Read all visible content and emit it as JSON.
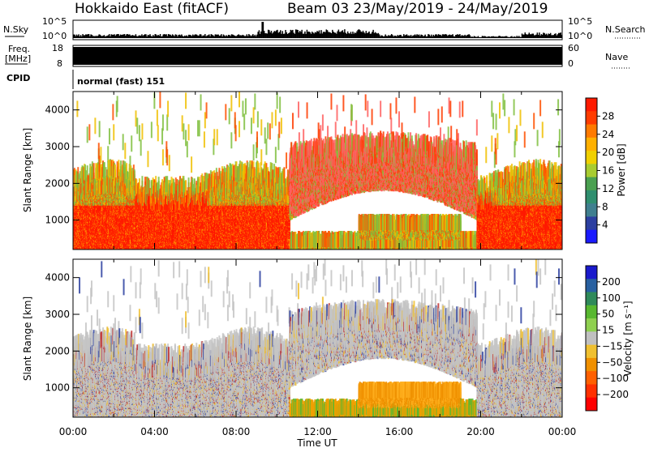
{
  "header": {
    "title": "Hokkaido East (fitACF)",
    "beam_info": "Beam 03 23/May/2019 - 24/May/2019"
  },
  "top_panels": {
    "nsky_label": "N.Sky",
    "nsky_ticks": [
      "10^5",
      "10^0"
    ],
    "nsearch_label": "N.Search",
    "nsearch_ticks": [
      "10^5",
      "10^0"
    ],
    "freq_label": "Freq.",
    "freq_unit": "[MHz]",
    "freq_ticks": [
      "18",
      "8"
    ],
    "nave_label": "Nave",
    "nave_ticks": [
      "60",
      "0"
    ],
    "cpid_label": "CPID",
    "cpid_value": "normal (fast) 151"
  },
  "chart_data": [
    {
      "type": "heatmap",
      "name": "power",
      "ylabel": "Slant Range [km]",
      "xlabel": "Time UT",
      "xlim_hours": [
        0,
        24
      ],
      "ylim": [
        200,
        4500
      ],
      "yticks": [
        "4000",
        "3000",
        "2000",
        "1000"
      ],
      "colorbar": {
        "label": "Power [dB]",
        "levels": [
          "28",
          "24",
          "20",
          "16",
          "12",
          "8",
          "4"
        ],
        "colors": [
          "#ff1a00",
          "#ff3c00",
          "#ff7a00",
          "#ffb000",
          "#f0d000",
          "#a8cc30",
          "#4aa050",
          "#2f8f6f",
          "#3f7f8f",
          "#2c3fa0",
          "#1a1aff"
        ]
      }
    },
    {
      "type": "heatmap",
      "name": "velocity",
      "ylabel": "Slant Range [km]",
      "xlabel": "Time UT",
      "xlim_hours": [
        0,
        24
      ],
      "ylim": [
        200,
        4500
      ],
      "yticks": [
        "4000",
        "3000",
        "2000",
        "1000"
      ],
      "colorbar": {
        "label": "Velocity [m s⁻¹]",
        "levels": [
          "200",
          "100",
          "50",
          "15",
          "−15",
          "−50",
          "−100",
          "−200"
        ],
        "colors": [
          "#1a1acc",
          "#2860a0",
          "#2f8a5a",
          "#58b830",
          "#8fd050",
          "#c0c0c0",
          "#f0c030",
          "#f09000",
          "#ff6000",
          "#ff3000",
          "#ff0000"
        ]
      }
    }
  ],
  "xaxis": {
    "ticks": [
      "00:00",
      "04:00",
      "08:00",
      "12:00",
      "16:00",
      "20:00",
      "00:00"
    ],
    "label": "Time UT"
  }
}
